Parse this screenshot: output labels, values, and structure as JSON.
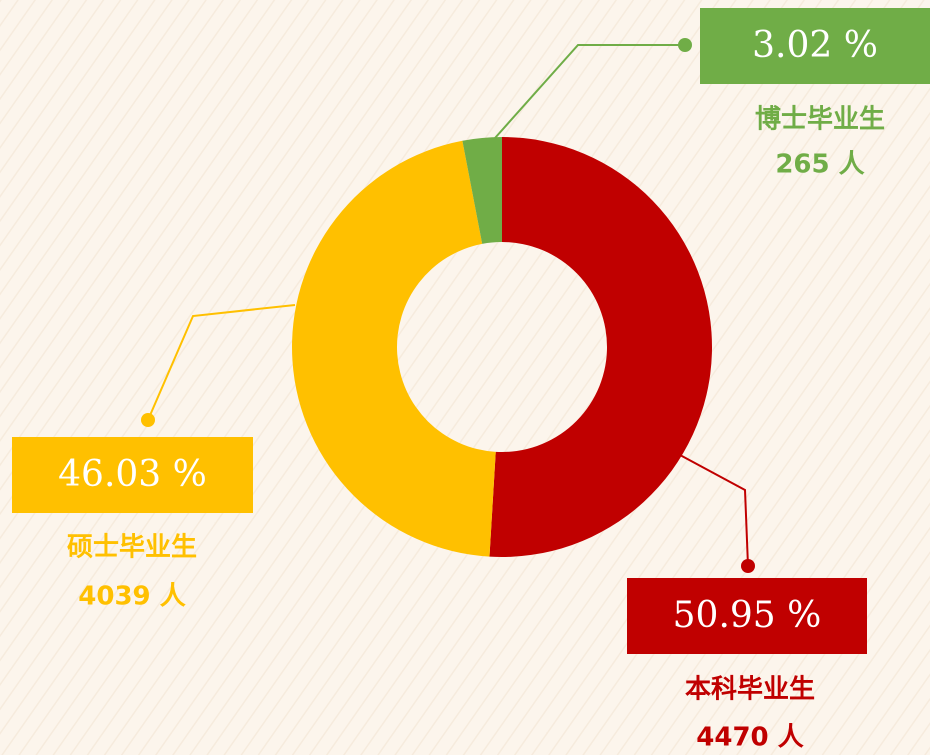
{
  "chart_data": {
    "type": "donut",
    "categories": [
      "本科毕业生",
      "硕士毕业生",
      "博士毕业生"
    ],
    "values": [
      50.95,
      46.03,
      3.02
    ],
    "value_labels": [
      "50.95 %",
      "46.03 %",
      "3.02 %"
    ],
    "count_labels": [
      "4470 人",
      "4039 人",
      "265 人"
    ],
    "colors": [
      "#c00000",
      "#ffc000",
      "#70ad47"
    ]
  }
}
